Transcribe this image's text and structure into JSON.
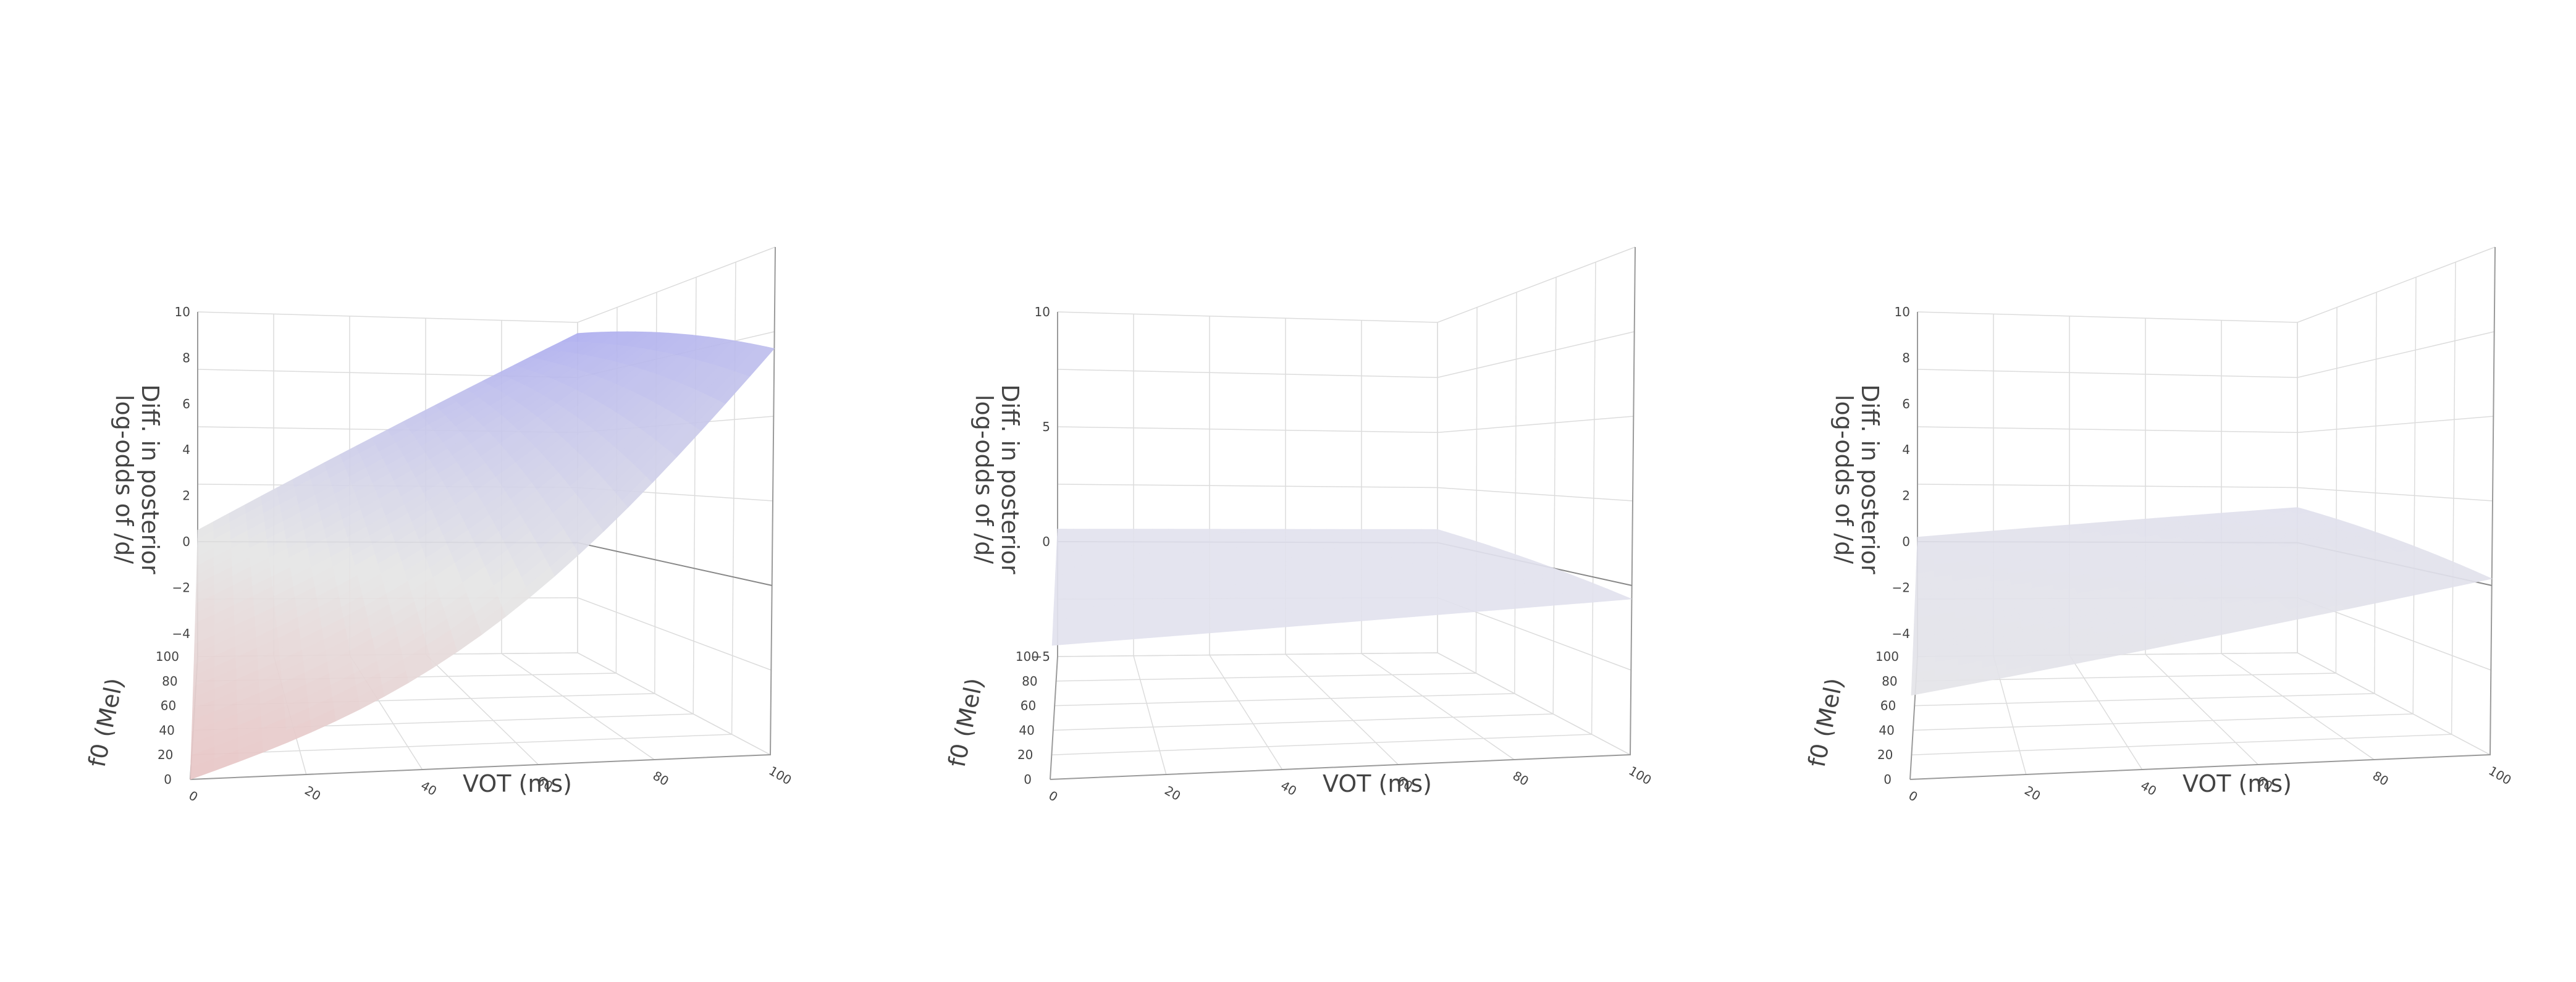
{
  "chart_data": [
    {
      "type": "surface",
      "xlabel": "VOT (ms)",
      "ylabel": "f0 (Mel)",
      "zlabel_lines": [
        "Diff. in posterior",
        "log-odds of /d/"
      ],
      "x_ticks": [
        "0",
        "20",
        "40",
        "60",
        "80",
        "100"
      ],
      "y_ticks": [
        "0",
        "20",
        "40",
        "60",
        "80",
        "100"
      ],
      "z_ticks": [
        "−4",
        "−2",
        "0",
        "2",
        "4",
        "6",
        "8",
        "10"
      ],
      "xlim": [
        0,
        100
      ],
      "ylim": [
        0,
        100
      ],
      "zlim": [
        -5,
        10
      ],
      "surface_corners": {
        "x0_y0": -5,
        "x100_y0": 7,
        "x0_y100": 0.5,
        "x100_y100": 9.5
      },
      "colorscale": {
        "low": "#e8c4c4",
        "mid": "#e6e6e6",
        "high": "#aaaaf0"
      }
    },
    {
      "type": "surface",
      "xlabel": "VOT (ms)",
      "ylabel": "f0 (Mel)",
      "zlabel_lines": [
        "Diff. in posterior",
        "log-odds of /d/"
      ],
      "x_ticks": [
        "0",
        "20",
        "40",
        "60",
        "80",
        "100"
      ],
      "y_ticks": [
        "0",
        "20",
        "40",
        "60",
        "80",
        "100"
      ],
      "z_ticks": [
        "−5",
        "0",
        "5",
        "10"
      ],
      "xlim": [
        0,
        100
      ],
      "ylim": [
        0,
        100
      ],
      "zlim": [
        -5,
        10
      ],
      "surface_corners": {
        "x0_y0": -0.7,
        "x100_y0": -0.4,
        "x0_y100": 0.55,
        "x100_y100": 0.6
      },
      "colorscale": {
        "low": "#e2e2ee",
        "mid": "#e2e2ee",
        "high": "#dcdcf0"
      }
    },
    {
      "type": "surface",
      "xlabel": "VOT (ms)",
      "ylabel": "f0 (Mel)",
      "zlabel_lines": [
        "Diff. in posterior",
        "log-odds of /d/"
      ],
      "x_ticks": [
        "0",
        "20",
        "40",
        "60",
        "80",
        "100"
      ],
      "y_ticks": [
        "0",
        "20",
        "40",
        "60",
        "80",
        "100"
      ],
      "z_ticks": [
        "−4",
        "−2",
        "0",
        "2",
        "4",
        "6",
        "8",
        "10"
      ],
      "xlim": [
        0,
        100
      ],
      "ylim": [
        0,
        100
      ],
      "zlim": [
        -5,
        10
      ],
      "surface_corners": {
        "x0_y0": -2.3,
        "x100_y0": 0.2,
        "x0_y100": 0.2,
        "x100_y100": 1.6
      },
      "colorscale": {
        "low": "#e6e6e6",
        "mid": "#e2e2ec",
        "high": "#d6d6f2"
      }
    }
  ]
}
